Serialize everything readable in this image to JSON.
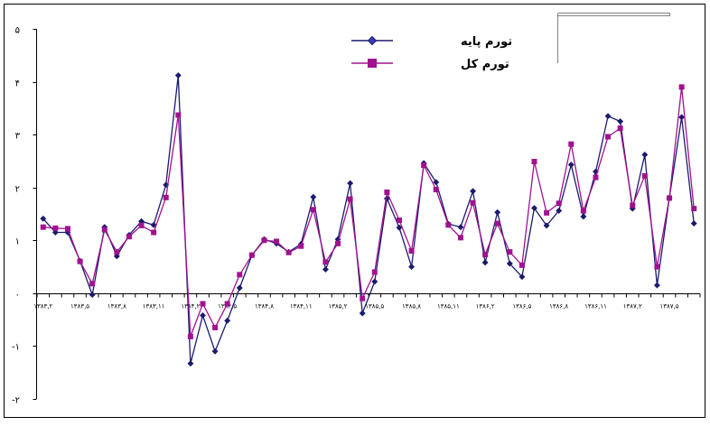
{
  "chart_data": {
    "type": "line",
    "y_ticks": [
      "۵",
      "۴",
      "۳",
      "۲",
      "۱",
      "۰",
      "-۱",
      "-۲"
    ],
    "y_tick_values": [
      5,
      4,
      3,
      2,
      1,
      0,
      -1,
      -2
    ],
    "ylim": [
      -2,
      5
    ],
    "x_tick_labels": [
      "۱۳۸۳,۲",
      "۱۳۸۳,۵",
      "۱۳۸۳,۸",
      "۱۳۸۳,۱۱",
      "۱۳۸۴,۲",
      "۱۳۸۴,۵",
      "۱۳۸۴,۸",
      "۱۳۸۴,۱۱",
      "۱۳۸۵,۲",
      "۱۳۸۵,۵",
      "۱۳۸۵,۸",
      "۱۳۸۵,۱۱",
      "۱۳۸۶,۲",
      "۱۳۸۶,۵",
      "۱۳۸۶,۸",
      "۱۳۸۶,۱۱",
      "۱۳۸۷,۲",
      "۱۳۸۷,۵"
    ],
    "x_tick_label_every": 3,
    "grid": false,
    "legend_position": "top-center",
    "series": [
      {
        "name": "تورم پایه",
        "color": "#1a1a6e",
        "marker": "diamond",
        "values": [
          1.41,
          1.15,
          1.15,
          0.61,
          -0.03,
          1.25,
          0.7,
          1.1,
          1.36,
          1.29,
          2.05,
          4.12,
          -1.33,
          -0.42,
          -1.1,
          -0.52,
          0.1,
          0.72,
          1.02,
          0.94,
          0.78,
          0.93,
          1.82,
          0.45,
          1.02,
          2.08,
          -0.38,
          0.22,
          1.79,
          1.24,
          0.5,
          2.46,
          2.1,
          1.31,
          1.25,
          1.93,
          0.58,
          1.53,
          0.56,
          0.31,
          1.61,
          1.28,
          1.56,
          2.43,
          1.45,
          2.3,
          3.35,
          3.25,
          1.6,
          2.62,
          0.15,
          1.8,
          3.33,
          1.32
        ]
      },
      {
        "name": "تورم کل",
        "color": "#a0128f",
        "marker": "square",
        "values": [
          1.25,
          1.23,
          1.22,
          0.6,
          0.18,
          1.2,
          0.78,
          1.07,
          1.28,
          1.15,
          1.81,
          3.37,
          -0.82,
          -0.2,
          -0.65,
          -0.2,
          0.35,
          0.72,
          1.0,
          0.98,
          0.77,
          0.89,
          1.58,
          0.59,
          0.94,
          1.78,
          -0.1,
          0.4,
          1.91,
          1.38,
          0.8,
          2.42,
          1.96,
          1.29,
          1.05,
          1.71,
          0.73,
          1.32,
          0.78,
          0.53,
          2.49,
          1.52,
          1.7,
          2.82,
          1.56,
          2.19,
          2.96,
          3.12,
          1.66,
          2.22,
          0.5,
          1.8,
          3.9,
          1.6
        ]
      }
    ]
  }
}
